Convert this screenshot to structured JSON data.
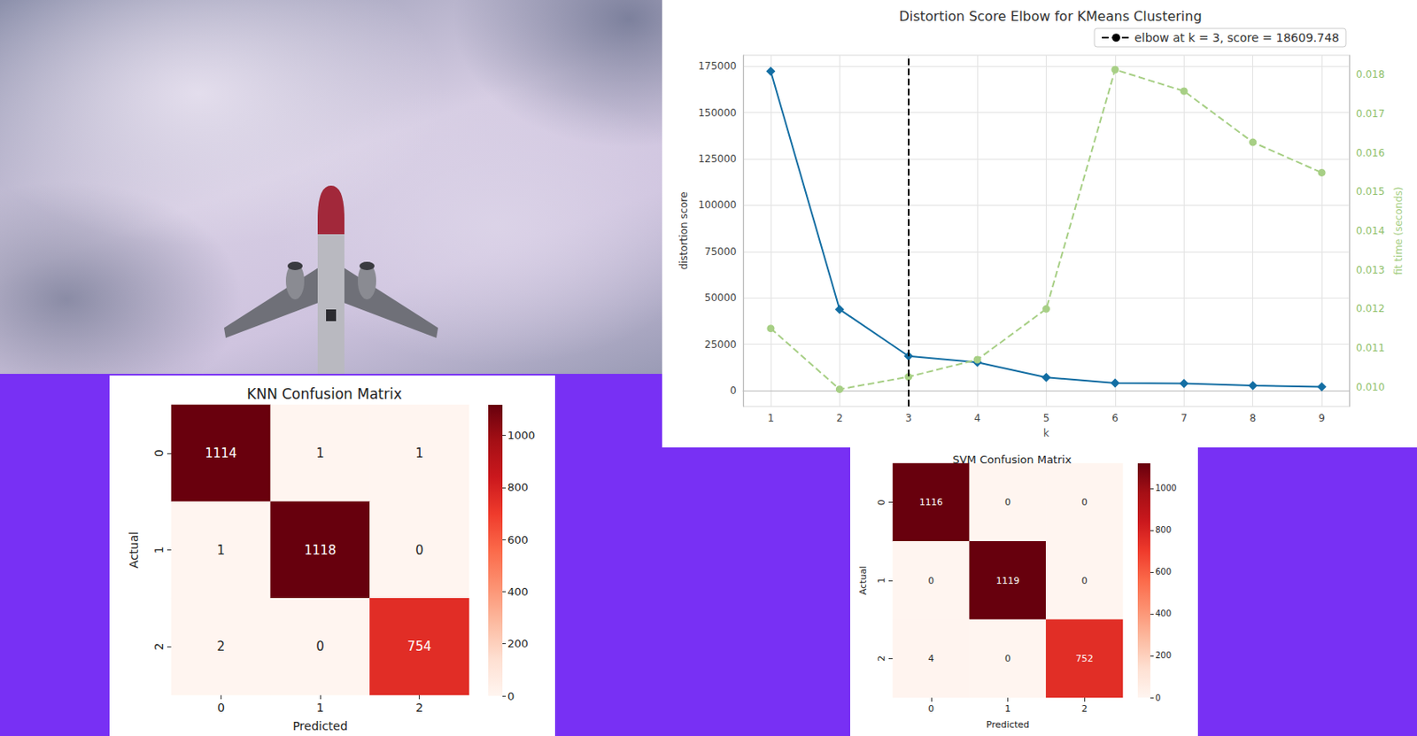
{
  "chart_data": [
    {
      "type": "line",
      "title": "Distortion Score Elbow for KMeans Clustering",
      "xlabel": "k",
      "ylabel": "distortion score",
      "y2label": "fit time (seconds)",
      "x": [
        1,
        2,
        3,
        4,
        5,
        6,
        7,
        8,
        9
      ],
      "series": [
        {
          "values": [
            172300,
            43800,
            18609.748,
            15200,
            7100,
            4000,
            3800,
            2700,
            2000
          ],
          "color": "#136ea3",
          "marker": "diamond"
        },
        {
          "values": [
            0.0115,
            0.00994,
            0.01026,
            0.0107,
            0.012,
            0.01813,
            0.01758,
            0.01627,
            0.01549
          ],
          "color": "#a7cf85",
          "marker": "circle",
          "line_style": "dashed",
          "axis": "y2"
        }
      ],
      "xlim": [
        0.6,
        9.4
      ],
      "xticks": [
        1,
        2,
        3,
        4,
        5,
        6,
        7,
        8,
        9
      ],
      "ylim": [
        -8600,
        181000
      ],
      "yticks": [
        0,
        25000,
        50000,
        75000,
        100000,
        125000,
        150000,
        175000
      ],
      "y2lim": [
        0.0095,
        0.0185
      ],
      "y2ticks": [
        {
          "value": 0.01,
          "label": "0.010"
        },
        0.011,
        0.012,
        0.013,
        0.014,
        0.015,
        0.016,
        0.017,
        0.018
      ],
      "grid": true,
      "legend": "upper right",
      "annotations": [
        {
          "x": 3,
          "text": "elbow at k = 3, score = 18609.748",
          "line_style": "dashed",
          "color": "#000000"
        }
      ]
    },
    {
      "type": "heatmap",
      "title": "KNN Confusion Matrix",
      "xlabel": "Predicted",
      "ylabel": "Actual",
      "x": [
        "0",
        "1",
        "2"
      ],
      "y": [
        "0",
        "1",
        "2"
      ],
      "cells": [
        [
          1114,
          1,
          1
        ],
        [
          1,
          1118,
          0
        ],
        [
          2,
          0,
          754
        ]
      ],
      "data_labels": true,
      "colorbar": {
        "range": [
          0,
          1118
        ],
        "ticks": [
          0,
          200,
          400,
          600,
          800,
          1000
        ]
      }
    },
    {
      "type": "heatmap",
      "title": "SVM Confusion Matrix",
      "xlabel": "Predicted",
      "ylabel": "Actual",
      "x": [
        "0",
        "1",
        "2"
      ],
      "y": [
        "0",
        "1",
        "2"
      ],
      "cells": [
        [
          1116,
          0,
          0
        ],
        [
          0,
          1119,
          0
        ],
        [
          4,
          0,
          752
        ]
      ],
      "data_labels": true,
      "colorbar": {
        "range": [
          0,
          1119
        ],
        "ticks": [
          0,
          200,
          400,
          600,
          800,
          1000
        ]
      }
    }
  ]
}
